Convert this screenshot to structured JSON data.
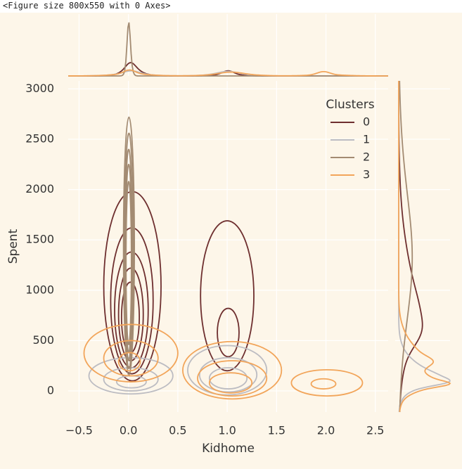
{
  "figure_text": "<Figure size 800x550 with 0 Axes>",
  "chart_data": {
    "type": "kde",
    "x_label": "Kidhome",
    "y_label": "Spent",
    "legend_title": "Clusters",
    "legend": "upper right",
    "grid": true,
    "xlim": [
      -0.61,
      2.63
    ],
    "ylim": [
      -210,
      3080
    ],
    "xticks": [
      {
        "value": -0.5,
        "label": "−0.5"
      },
      {
        "value": 0,
        "label": "0.0"
      },
      0.5,
      {
        "value": 1,
        "label": "1.0"
      },
      1.5,
      {
        "value": 2,
        "label": "2.0"
      },
      2.5
    ],
    "yticks": [
      0,
      500,
      1000,
      1500,
      2000,
      2500,
      3000
    ],
    "series": [
      {
        "name": "0",
        "color": "#6e2f2f",
        "contours": [
          {
            "x": [
              -0.25,
              0.33
            ],
            "y": [
              100,
              1980
            ]
          },
          {
            "x": [
              -0.18,
              0.25
            ],
            "y": [
              170,
              1620
            ]
          },
          {
            "x": [
              -0.14,
              0.2
            ],
            "y": [
              230,
              1380
            ]
          },
          {
            "x": [
              -0.1,
              0.15
            ],
            "y": [
              300,
              1220
            ]
          },
          {
            "x": [
              -0.07,
              0.11
            ],
            "y": [
              380,
              1080
            ]
          },
          {
            "x": [
              0.73,
              1.27
            ],
            "y": [
              200,
              1690
            ]
          },
          {
            "x": [
              0.9,
              1.12
            ],
            "y": [
              340,
              820
            ]
          }
        ]
      },
      {
        "name": "1",
        "color": "#bcbcc2",
        "contours": [
          {
            "x": [
              -0.4,
              0.45
            ],
            "y": [
              -30,
              330
            ]
          },
          {
            "x": [
              -0.25,
              0.3
            ],
            "y": [
              0,
              230
            ]
          },
          {
            "x": [
              -0.12,
              0.18
            ],
            "y": [
              30,
              150
            ]
          },
          {
            "x": [
              0.6,
              1.4
            ],
            "y": [
              -40,
              450
            ]
          },
          {
            "x": [
              0.72,
              1.3
            ],
            "y": [
              -10,
              330
            ]
          },
          {
            "x": [
              0.82,
              1.2
            ],
            "y": [
              20,
              230
            ]
          }
        ]
      },
      {
        "name": "2",
        "color": "#a38b72",
        "contours": [
          {
            "x": [
              -0.05,
              0.06
            ],
            "y": [
              150,
              2720
            ]
          },
          {
            "x": [
              -0.04,
              0.05
            ],
            "y": [
              220,
              2560
            ]
          },
          {
            "x": [
              -0.035,
              0.04
            ],
            "y": [
              300,
              2400
            ]
          },
          {
            "x": [
              -0.03,
              0.035
            ],
            "y": [
              380,
              2250
            ]
          },
          {
            "x": [
              -0.025,
              0.03
            ],
            "y": [
              460,
              2080
            ]
          }
        ]
      },
      {
        "name": "3",
        "color": "#f2a55a",
        "contours": [
          {
            "x": [
              -0.45,
              0.5
            ],
            "y": [
              90,
              660
            ]
          },
          {
            "x": [
              -0.25,
              0.3
            ],
            "y": [
              150,
              500
            ]
          },
          {
            "x": [
              -0.1,
              0.12
            ],
            "y": [
              200,
              380
            ]
          },
          {
            "x": [
              0.55,
              1.55
            ],
            "y": [
              -80,
              490
            ]
          },
          {
            "x": [
              0.7,
              1.4
            ],
            "y": [
              -50,
              300
            ]
          },
          {
            "x": [
              0.82,
              1.25
            ],
            "y": [
              -20,
              180
            ]
          },
          {
            "x": [
              1.65,
              2.37
            ],
            "y": [
              -50,
              210
            ]
          },
          {
            "x": [
              1.85,
              2.1
            ],
            "y": [
              20,
              120
            ]
          }
        ]
      }
    ]
  }
}
